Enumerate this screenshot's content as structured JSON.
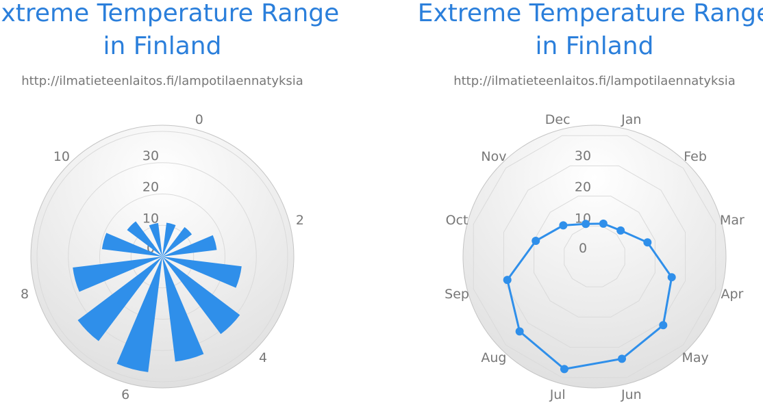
{
  "chart_data": [
    {
      "type": "polar-column",
      "title": "Extreme Temperature Range in Finland",
      "subtitle": "http://ilmatieteenlaitos.fi/lampotilaennatyksia",
      "x": [
        0,
        1,
        2,
        3,
        4,
        5,
        6,
        7,
        8,
        9,
        10,
        11
      ],
      "x_tick_labels": [
        "0",
        "2",
        "4",
        "6",
        "8",
        "10"
      ],
      "values": [
        10.9,
        11.8,
        17.5,
        25.5,
        31.0,
        33.8,
        37.2,
        33.8,
        28.8,
        19.4,
        14.1,
        10.8
      ],
      "y_tick_labels": [
        "0",
        "10",
        "20",
        "30"
      ],
      "ylim": [
        0,
        42
      ],
      "grid": true,
      "color": "#2f8fea"
    },
    {
      "type": "polar-line",
      "title": "Extreme Temperature Range in Finland",
      "subtitle": "http://ilmatieteenlaitos.fi/lampotilaennatyksia",
      "categories": [
        "Jan",
        "Feb",
        "Mar",
        "Apr",
        "May",
        "Jun",
        "Jul",
        "Aug",
        "Sep",
        "Oct",
        "Nov",
        "Dec"
      ],
      "values": [
        10.9,
        11.8,
        17.5,
        25.5,
        31.0,
        33.8,
        37.2,
        33.8,
        28.8,
        19.4,
        14.1,
        10.8
      ],
      "y_tick_labels": [
        "0",
        "10",
        "20",
        "30"
      ],
      "ylim": [
        0,
        42
      ],
      "grid": true,
      "gridline_shape": "polygon",
      "color": "#2f8fea"
    }
  ]
}
